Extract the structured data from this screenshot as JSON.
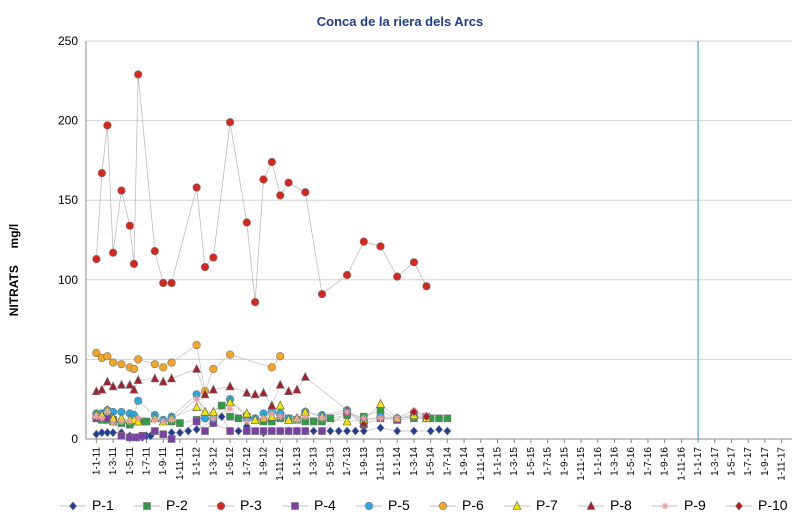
{
  "chart_data": {
    "type": "line",
    "title": "Conca de la riera dels Arcs",
    "ylabel": "NITRATS     mg/l",
    "xlabel": "",
    "ylim": [
      0,
      250
    ],
    "yticks": [
      0,
      50,
      100,
      150,
      200,
      250
    ],
    "grid": true,
    "legend_position": "bottom",
    "categories": [
      "1-1-11",
      "1-3-11",
      "1-5-11",
      "1-7-11",
      "1-9-11",
      "1-11-11",
      "1-1-12",
      "1-3-12",
      "1-5-12",
      "1-7-12",
      "1-9-12",
      "1-11-12",
      "1-1-13",
      "1-3-13",
      "1-5-13",
      "1-7-13",
      "1-9-13",
      "1-11-13",
      "1-1-14",
      "1-3-14",
      "1-5-14",
      "1-7-14",
      "1-9-14",
      "1-11-14",
      "1-1-15",
      "1-3-15",
      "1-5-15",
      "1-7-15",
      "1-9-15",
      "1-11-15",
      "1-1-16",
      "1-3-16",
      "1-5-16",
      "1-7-16",
      "1-9-16",
      "1-11-16",
      "1-1-17",
      "1-3-17",
      "1-5-17",
      "1-7-17",
      "1-9-17",
      "1-11-17"
    ],
    "vertical_line_at": "1-1-17",
    "series": [
      {
        "name": "P-1",
        "color": "#1f3c9a",
        "marker": "diamond",
        "points": [
          [
            0.0,
            3
          ],
          [
            0.33,
            4
          ],
          [
            0.66,
            4
          ],
          [
            1.0,
            4
          ],
          [
            1.5,
            4
          ],
          [
            2.0,
            2
          ],
          [
            2.4,
            1
          ],
          [
            2.75,
            1
          ],
          [
            3.0,
            2
          ],
          [
            3.25,
            2
          ],
          [
            4.5,
            4
          ],
          [
            5.0,
            4
          ],
          [
            5.5,
            5
          ],
          [
            6.0,
            6
          ],
          [
            7.5,
            14
          ],
          [
            8.0,
            5
          ],
          [
            8.5,
            5
          ],
          [
            9.0,
            8
          ],
          [
            10.0,
            4
          ],
          [
            10.5,
            5
          ],
          [
            11.0,
            5
          ],
          [
            11.5,
            5
          ],
          [
            12.0,
            5
          ],
          [
            12.5,
            5
          ],
          [
            13.0,
            5
          ],
          [
            13.5,
            5
          ],
          [
            14.0,
            5
          ],
          [
            14.5,
            5
          ],
          [
            15.0,
            5
          ],
          [
            15.5,
            5
          ],
          [
            16.0,
            5
          ],
          [
            17.0,
            7
          ],
          [
            18.0,
            5
          ],
          [
            19.0,
            5
          ],
          [
            20.0,
            5
          ],
          [
            20.5,
            6
          ],
          [
            21.0,
            5
          ]
        ]
      },
      {
        "name": "P-2",
        "color": "#2e9b45",
        "marker": "square",
        "points": [
          [
            0.0,
            13
          ],
          [
            0.33,
            12
          ],
          [
            0.66,
            12
          ],
          [
            1.0,
            11
          ],
          [
            1.5,
            10
          ],
          [
            2.0,
            9
          ],
          [
            2.4,
            11
          ],
          [
            2.75,
            11
          ],
          [
            3.0,
            11
          ],
          [
            4.5,
            11
          ],
          [
            5.0,
            10
          ],
          [
            6.0,
            12
          ],
          [
            7.5,
            21
          ],
          [
            8.0,
            14
          ],
          [
            8.5,
            13
          ],
          [
            9.0,
            14
          ],
          [
            10.0,
            11
          ],
          [
            10.5,
            11
          ],
          [
            11.0,
            13
          ],
          [
            11.5,
            13
          ],
          [
            12.0,
            12
          ],
          [
            12.5,
            11
          ],
          [
            13.0,
            11
          ],
          [
            13.5,
            11
          ],
          [
            14.0,
            13
          ],
          [
            15.0,
            15
          ],
          [
            16.0,
            14
          ],
          [
            17.0,
            18
          ],
          [
            18.0,
            12
          ],
          [
            19.0,
            13
          ],
          [
            20.0,
            13
          ],
          [
            20.5,
            13
          ],
          [
            21.0,
            13
          ]
        ]
      },
      {
        "name": "P-3",
        "color": "#d9261c",
        "marker": "circle",
        "points": [
          [
            0.0,
            113
          ],
          [
            0.33,
            167
          ],
          [
            0.66,
            197
          ],
          [
            1.0,
            117
          ],
          [
            1.5,
            156
          ],
          [
            2.0,
            134
          ],
          [
            2.25,
            110
          ],
          [
            2.5,
            229
          ],
          [
            3.5,
            118
          ],
          [
            4.0,
            98
          ],
          [
            4.5,
            98
          ],
          [
            6.0,
            158
          ],
          [
            6.5,
            108
          ],
          [
            7.0,
            114
          ],
          [
            8.0,
            199
          ],
          [
            9.0,
            136
          ],
          [
            9.5,
            86
          ],
          [
            10.0,
            163
          ],
          [
            10.5,
            174
          ],
          [
            11.0,
            153
          ],
          [
            11.5,
            161
          ],
          [
            12.5,
            155
          ],
          [
            13.5,
            91
          ],
          [
            15.0,
            103
          ],
          [
            16.0,
            124
          ],
          [
            17.0,
            121
          ],
          [
            18.0,
            102
          ],
          [
            19.0,
            111
          ],
          [
            19.75,
            96
          ]
        ]
      },
      {
        "name": "P-4",
        "color": "#7b3fa6",
        "marker": "square",
        "points": [
          [
            0.0,
            13
          ],
          [
            0.33,
            13
          ],
          [
            0.66,
            13
          ],
          [
            1.0,
            12
          ],
          [
            1.5,
            2
          ],
          [
            2.0,
            1
          ],
          [
            2.4,
            1
          ],
          [
            2.75,
            2
          ],
          [
            3.5,
            5
          ],
          [
            4.0,
            3
          ],
          [
            4.5,
            0
          ],
          [
            6.0,
            11
          ],
          [
            6.5,
            5
          ],
          [
            7.0,
            10
          ],
          [
            8.0,
            5
          ],
          [
            9.0,
            5
          ],
          [
            9.5,
            5
          ],
          [
            10.0,
            5
          ],
          [
            10.5,
            5
          ],
          [
            11.0,
            5
          ],
          [
            11.5,
            5
          ],
          [
            12.0,
            5
          ],
          [
            12.5,
            5
          ],
          [
            13.5,
            5
          ],
          [
            15.0,
            17
          ],
          [
            16.0,
            9
          ],
          [
            17.0,
            13
          ],
          [
            18.0,
            12
          ],
          [
            19.0,
            16
          ],
          [
            19.75,
            14
          ]
        ]
      },
      {
        "name": "P-5",
        "color": "#2aa8e0",
        "marker": "circle",
        "points": [
          [
            0.0,
            16
          ],
          [
            0.33,
            16
          ],
          [
            0.66,
            18
          ],
          [
            1.0,
            17
          ],
          [
            1.5,
            17
          ],
          [
            2.0,
            16
          ],
          [
            2.25,
            15
          ],
          [
            2.5,
            24
          ],
          [
            3.5,
            15
          ],
          [
            4.0,
            12
          ],
          [
            4.5,
            14
          ],
          [
            6.0,
            28
          ],
          [
            6.5,
            13
          ],
          [
            7.0,
            13
          ],
          [
            8.0,
            25
          ],
          [
            9.0,
            13
          ],
          [
            9.5,
            13
          ],
          [
            10.0,
            16
          ],
          [
            10.5,
            17
          ],
          [
            11.0,
            16
          ],
          [
            11.5,
            13
          ],
          [
            12.5,
            17
          ],
          [
            13.5,
            15
          ],
          [
            15.0,
            18
          ],
          [
            16.0,
            11
          ],
          [
            17.0,
            14
          ],
          [
            18.0,
            13
          ],
          [
            19.0,
            14
          ],
          [
            19.75,
            13
          ]
        ]
      },
      {
        "name": "P-6",
        "color": "#f5a623",
        "marker": "circle",
        "points": [
          [
            0.0,
            54
          ],
          [
            0.33,
            51
          ],
          [
            0.66,
            52
          ],
          [
            1.0,
            48
          ],
          [
            1.5,
            47
          ],
          [
            2.0,
            45
          ],
          [
            2.25,
            44
          ],
          [
            2.5,
            50
          ],
          [
            3.5,
            47
          ],
          [
            4.0,
            45
          ],
          [
            4.5,
            48
          ],
          [
            6.0,
            59
          ],
          [
            6.5,
            30
          ],
          [
            7.0,
            44
          ],
          [
            8.0,
            53
          ],
          [
            10.5,
            45
          ],
          [
            11.0,
            52
          ]
        ]
      },
      {
        "name": "P-7",
        "color": "#f2e600",
        "marker": "triangle",
        "points": [
          [
            0.0,
            15
          ],
          [
            0.33,
            15
          ],
          [
            0.66,
            18
          ],
          [
            1.0,
            13
          ],
          [
            1.5,
            13
          ],
          [
            2.0,
            12
          ],
          [
            2.25,
            12
          ],
          [
            2.5,
            11
          ],
          [
            3.5,
            13
          ],
          [
            4.0,
            11
          ],
          [
            4.5,
            13
          ],
          [
            6.0,
            20
          ],
          [
            6.5,
            17
          ],
          [
            7.0,
            17
          ],
          [
            8.0,
            23
          ],
          [
            9.0,
            16
          ],
          [
            9.5,
            12
          ],
          [
            10.0,
            13
          ],
          [
            10.5,
            14
          ],
          [
            11.0,
            21
          ],
          [
            11.5,
            12
          ],
          [
            12.0,
            13
          ],
          [
            12.5,
            17
          ],
          [
            13.5,
            14
          ],
          [
            15.0,
            11
          ],
          [
            16.0,
            12
          ],
          [
            17.0,
            22
          ],
          [
            18.0,
            13
          ],
          [
            19.0,
            15
          ],
          [
            19.75,
            13
          ]
        ]
      },
      {
        "name": "P-8",
        "color": "#a3222e",
        "marker": "triangle",
        "points": [
          [
            0.0,
            30
          ],
          [
            0.33,
            31
          ],
          [
            0.66,
            36
          ],
          [
            1.0,
            33
          ],
          [
            1.5,
            34
          ],
          [
            2.0,
            34
          ],
          [
            2.25,
            31
          ],
          [
            2.5,
            37
          ],
          [
            3.5,
            38
          ],
          [
            4.0,
            36
          ],
          [
            4.5,
            38
          ],
          [
            6.0,
            44
          ],
          [
            6.5,
            28
          ],
          [
            7.0,
            31
          ],
          [
            8.0,
            33
          ],
          [
            9.0,
            29
          ],
          [
            9.5,
            28
          ],
          [
            10.0,
            29
          ],
          [
            10.5,
            21
          ],
          [
            11.0,
            34
          ],
          [
            11.5,
            30
          ],
          [
            12.0,
            31
          ],
          [
            12.5,
            39
          ],
          [
            15.0,
            18
          ],
          [
            16.0,
            10
          ]
        ]
      },
      {
        "name": "P-9",
        "color": "#e8a0a0",
        "marker": "star",
        "points": [
          [
            0.0,
            14
          ],
          [
            0.33,
            13
          ],
          [
            0.66,
            17
          ],
          [
            1.0,
            10
          ],
          [
            1.5,
            11
          ],
          [
            2.0,
            11
          ],
          [
            2.5,
            13
          ],
          [
            3.5,
            12
          ],
          [
            4.0,
            11
          ],
          [
            4.5,
            12
          ],
          [
            6.0,
            25
          ],
          [
            7.0,
            13
          ],
          [
            8.0,
            19
          ],
          [
            9.0,
            11
          ],
          [
            10.0,
            13
          ],
          [
            10.5,
            16
          ],
          [
            11.0,
            14
          ],
          [
            12.0,
            12
          ],
          [
            12.5,
            14
          ],
          [
            13.5,
            13
          ],
          [
            15.0,
            17
          ],
          [
            16.0,
            13
          ],
          [
            17.0,
            13
          ],
          [
            18.0,
            13
          ],
          [
            19.0,
            18
          ],
          [
            19.75,
            15
          ]
        ]
      },
      {
        "name": "P-10",
        "color": "#c0101a",
        "marker": "diamond",
        "points": [
          [
            19.0,
            17
          ],
          [
            19.75,
            14
          ]
        ]
      }
    ]
  }
}
